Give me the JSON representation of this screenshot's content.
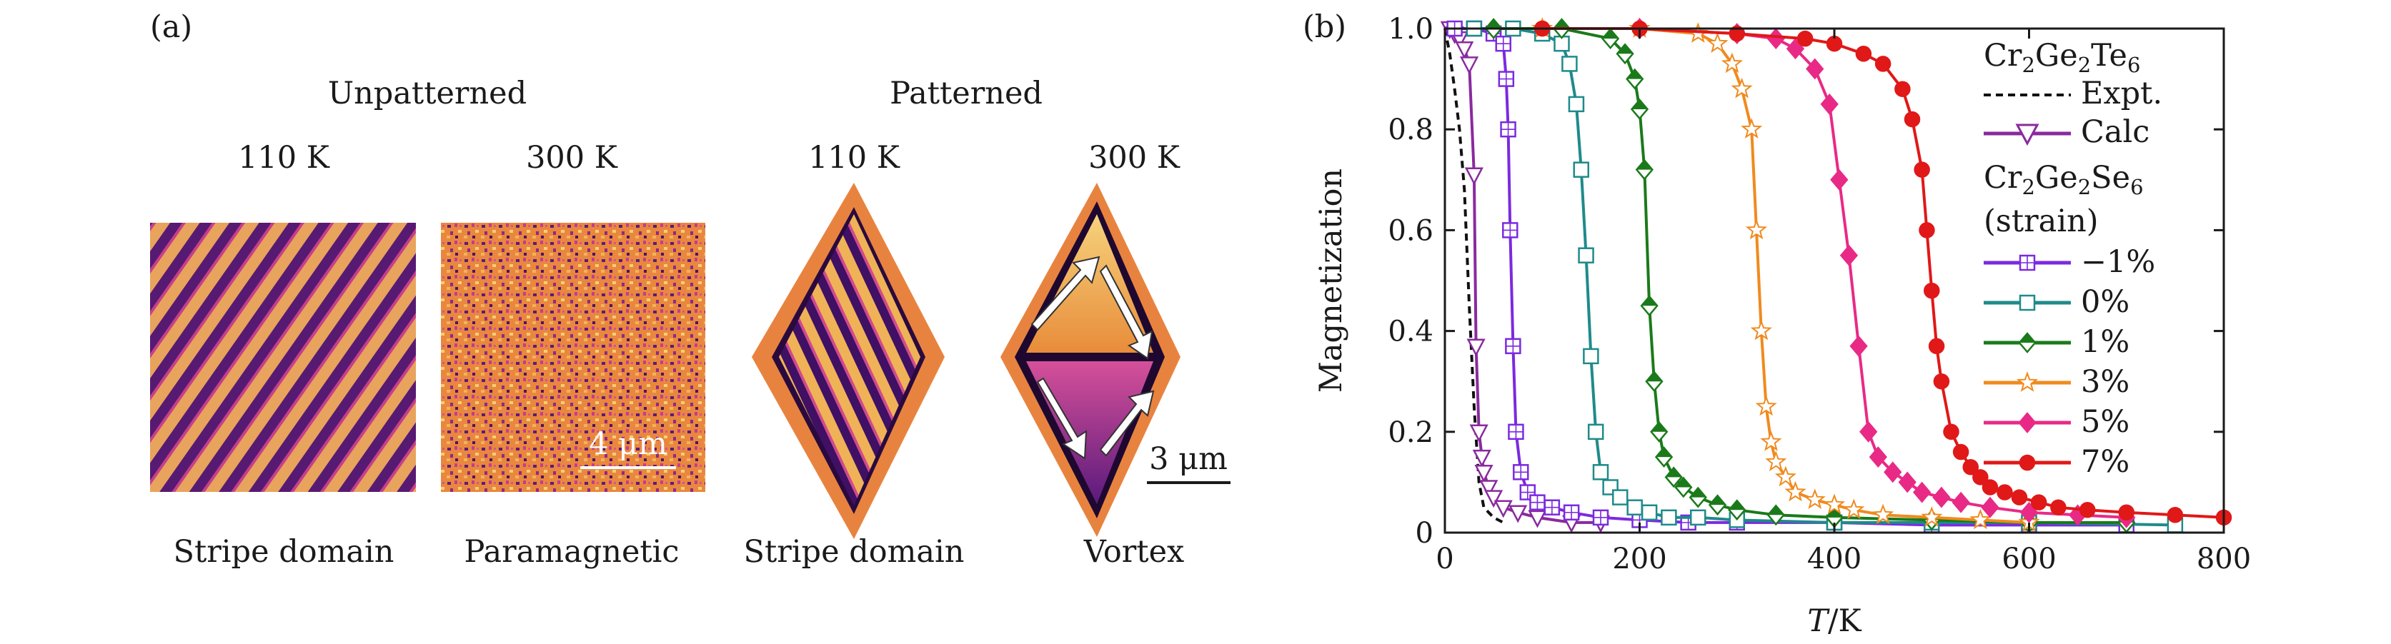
{
  "panel_a": {
    "label": "(a)",
    "group_unpatterned": "Unpatterned",
    "group_patterned": "Patterned",
    "temps": [
      "110 K",
      "300 K",
      "110 K",
      "300 K"
    ],
    "captions": [
      "Stripe domain",
      "Paramagnetic",
      "Stripe domain",
      "Vortex"
    ],
    "scalebar_1": "4 μm",
    "scalebar_2": "3 μm",
    "colors": {
      "dark": "#3a0a5e",
      "mid": "#c9408a",
      "light": "#f2b95a"
    }
  },
  "panel_b": {
    "label": "(b)"
  },
  "legend": {
    "group1_formula": [
      "Cr",
      "2",
      "Ge",
      "2",
      "Te",
      "6"
    ],
    "expt": "Expt.",
    "calc": "Calc",
    "group2_formula": [
      "Cr",
      "2",
      "Ge",
      "2",
      "Se",
      "6"
    ],
    "group2_note": "(strain)",
    "strain_labels": [
      "−1%",
      "0%",
      "1%",
      "3%",
      "5%",
      "7%"
    ]
  },
  "chart_data": {
    "type": "line",
    "xlabel_var": "T",
    "xlabel_unit": "/K",
    "ylabel": "Magnetization",
    "xlim": [
      0,
      800
    ],
    "ylim": [
      0,
      1.0
    ],
    "xticks": [
      0,
      200,
      400,
      600,
      800
    ],
    "yticks": [
      0,
      0.2,
      0.4,
      0.6,
      0.8,
      1.0
    ],
    "xtick_labels": [
      "0",
      "200",
      "400",
      "600",
      "800"
    ],
    "ytick_labels": [
      "0",
      "0.2",
      "0.4",
      "0.6",
      "0.8",
      "1.0"
    ],
    "series": [
      {
        "name": "Cr2Ge2Te6 Expt.",
        "color": "#111111",
        "marker": "none",
        "dashed": true,
        "x": [
          0,
          5,
          10,
          15,
          20,
          25,
          30,
          35,
          40,
          50,
          60
        ],
        "y": [
          1.0,
          0.95,
          0.88,
          0.8,
          0.68,
          0.45,
          0.25,
          0.1,
          0.05,
          0.03,
          0.02
        ]
      },
      {
        "name": "Cr2Ge2Te6 Calc",
        "color": "#8a2a9e",
        "marker": "triangle-down",
        "x": [
          5,
          10,
          15,
          20,
          25,
          30,
          32,
          35,
          38,
          40,
          45,
          50,
          60,
          75,
          95,
          130,
          160
        ],
        "y": [
          1.0,
          0.99,
          0.98,
          0.96,
          0.93,
          0.71,
          0.37,
          0.2,
          0.15,
          0.12,
          0.09,
          0.07,
          0.05,
          0.04,
          0.03,
          0.02,
          0.02
        ]
      },
      {
        "name": "-1%",
        "color": "#7b2ae0",
        "marker": "square-plus",
        "x": [
          10,
          30,
          50,
          60,
          63,
          65,
          67,
          70,
          73,
          78,
          85,
          95,
          110,
          130,
          160,
          200,
          250,
          300,
          400,
          500,
          600,
          700
        ],
        "y": [
          1.0,
          1.0,
          0.99,
          0.97,
          0.9,
          0.8,
          0.6,
          0.37,
          0.2,
          0.12,
          0.08,
          0.06,
          0.05,
          0.04,
          0.03,
          0.025,
          0.02,
          0.02,
          0.02,
          0.015,
          0.015,
          0.015
        ]
      },
      {
        "name": "0%",
        "color": "#1f8a8a",
        "marker": "square",
        "x": [
          30,
          70,
          100,
          120,
          128,
          135,
          140,
          145,
          150,
          155,
          160,
          170,
          180,
          195,
          210,
          230,
          260,
          300,
          400,
          500,
          600,
          750
        ],
        "y": [
          1.0,
          1.0,
          0.99,
          0.97,
          0.93,
          0.85,
          0.72,
          0.55,
          0.35,
          0.2,
          0.12,
          0.09,
          0.07,
          0.05,
          0.04,
          0.03,
          0.03,
          0.025,
          0.02,
          0.02,
          0.02,
          0.015
        ]
      },
      {
        "name": "1%",
        "color": "#1a7a1a",
        "marker": "diamond",
        "x": [
          50,
          120,
          170,
          185,
          195,
          200,
          205,
          210,
          215,
          220,
          225,
          235,
          245,
          260,
          280,
          300,
          340,
          400,
          500,
          600,
          700
        ],
        "y": [
          1.0,
          1.0,
          0.98,
          0.95,
          0.9,
          0.84,
          0.72,
          0.45,
          0.3,
          0.2,
          0.15,
          0.11,
          0.09,
          0.07,
          0.055,
          0.045,
          0.035,
          0.03,
          0.025,
          0.02,
          0.02
        ]
      },
      {
        "name": "3%",
        "color": "#f08a1e",
        "marker": "star",
        "x": [
          100,
          200,
          260,
          280,
          295,
          305,
          315,
          320,
          325,
          330,
          335,
          340,
          350,
          360,
          380,
          400,
          420,
          450,
          500,
          550,
          600
        ],
        "y": [
          1.0,
          1.0,
          0.99,
          0.97,
          0.93,
          0.88,
          0.8,
          0.6,
          0.4,
          0.25,
          0.18,
          0.14,
          0.11,
          0.08,
          0.065,
          0.055,
          0.045,
          0.035,
          0.03,
          0.025,
          0.02
        ]
      },
      {
        "name": "5%",
        "color": "#e82a86",
        "marker": "diamond-filled",
        "x": [
          200,
          300,
          340,
          360,
          380,
          395,
          405,
          415,
          425,
          435,
          445,
          460,
          475,
          490,
          510,
          530,
          560,
          600,
          650,
          700
        ],
        "y": [
          1.0,
          0.99,
          0.98,
          0.96,
          0.92,
          0.85,
          0.7,
          0.55,
          0.37,
          0.2,
          0.15,
          0.12,
          0.1,
          0.08,
          0.07,
          0.06,
          0.05,
          0.04,
          0.035,
          0.03
        ]
      },
      {
        "name": "7%",
        "color": "#e01818",
        "marker": "circle",
        "x": [
          100,
          200,
          300,
          370,
          400,
          430,
          450,
          470,
          480,
          490,
          495,
          500,
          505,
          510,
          520,
          530,
          540,
          550,
          560,
          575,
          590,
          610,
          630,
          660,
          700,
          750,
          800
        ],
        "y": [
          1.0,
          1.0,
          0.99,
          0.98,
          0.97,
          0.95,
          0.93,
          0.88,
          0.82,
          0.72,
          0.6,
          0.48,
          0.37,
          0.3,
          0.2,
          0.16,
          0.13,
          0.11,
          0.09,
          0.08,
          0.07,
          0.06,
          0.05,
          0.045,
          0.04,
          0.035,
          0.03
        ]
      }
    ]
  }
}
